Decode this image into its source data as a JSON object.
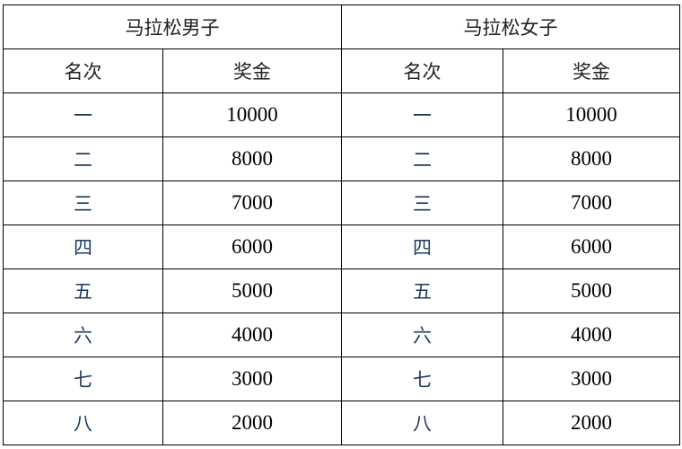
{
  "tables": [
    {
      "title": "马拉松男子",
      "headers": [
        "名次",
        "奖金"
      ],
      "rows": [
        [
          "一",
          "10000"
        ],
        [
          "二",
          "8000"
        ],
        [
          "三",
          "7000"
        ],
        [
          "四",
          "6000"
        ],
        [
          "五",
          "5000"
        ],
        [
          "六",
          "4000"
        ],
        [
          "七",
          "3000"
        ],
        [
          "八",
          "2000"
        ]
      ]
    },
    {
      "title": "马拉松女子",
      "headers": [
        "名次",
        "奖金"
      ],
      "rows": [
        [
          "一",
          "10000"
        ],
        [
          "二",
          "8000"
        ],
        [
          "三",
          "7000"
        ],
        [
          "四",
          "6000"
        ],
        [
          "五",
          "5000"
        ],
        [
          "六",
          "4000"
        ],
        [
          "七",
          "3000"
        ],
        [
          "八",
          "2000"
        ]
      ]
    }
  ]
}
